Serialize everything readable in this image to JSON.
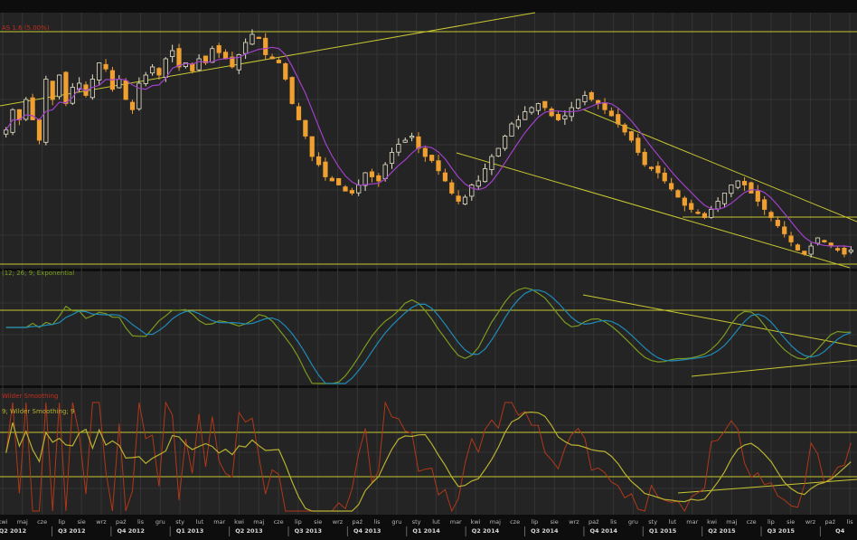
{
  "colors": {
    "background": "#242424",
    "frame": "#0d0d0d",
    "grid": "#353535",
    "bull": "#e8e2c8",
    "bear": "#f0a030",
    "ma": "#a040c8",
    "trend": "#c8c832",
    "macd": "#7a9a20",
    "signal": "#1f8ab8",
    "rsi": "#b03818",
    "rsi_ma": "#b8b030"
  },
  "price_panel": {
    "label": "AS 1.6 (5.00%)"
  },
  "macd_panel": {
    "label": "(12; 26; 9; Exponential"
  },
  "rsi_panel": {
    "label_1": "Wilder Smoothing",
    "label_2": "9; Wilder Smoothing; 9"
  },
  "axis": {
    "months": [
      "kwi",
      "maj",
      "cze",
      "lip",
      "sie",
      "wrz",
      "paź",
      "lis",
      "gru",
      "sty",
      "lut",
      "mar",
      "kwi",
      "maj",
      "cze",
      "lip",
      "sie",
      "wrz",
      "paź",
      "lis",
      "gru",
      "sty",
      "lut",
      "mar",
      "kwi",
      "maj",
      "cze",
      "lip",
      "sie",
      "wrz",
      "paź",
      "lis",
      "gru",
      "sty",
      "lut",
      "mar",
      "kwi",
      "maj",
      "cze",
      "lip",
      "sie",
      "wrz",
      "paź",
      "lis"
    ],
    "quarters": [
      "Q2 2012",
      "Q3 2012",
      "Q4 2012",
      "Q1 2013",
      "Q2 2013",
      "Q3 2013",
      "Q4 2013",
      "Q1 2014",
      "Q2 2014",
      "Q3 2014",
      "Q4 2014",
      "Q1 2015",
      "Q2 2015",
      "Q3 2015",
      "Q4"
    ]
  },
  "chart_data": {
    "type": "candlestick",
    "x_period": "weekly",
    "x_start": "2012-04",
    "x_end": "2015-11",
    "panels": [
      {
        "name": "price",
        "series": [
          {
            "type": "candlestick",
            "close_approx": [
              0.45,
              0.55,
              0.5,
              0.6,
              0.5,
              0.4,
              0.7,
              0.6,
              0.72,
              0.58,
              0.66,
              0.68,
              0.62,
              0.7,
              0.78,
              0.75,
              0.65,
              0.7,
              0.6,
              0.55,
              0.68,
              0.72,
              0.76,
              0.72,
              0.8,
              0.84,
              0.76,
              0.78,
              0.74,
              0.8,
              0.78,
              0.85,
              0.83,
              0.8,
              0.76,
              0.82,
              0.88,
              0.92,
              0.9,
              0.82,
              0.8,
              0.78,
              0.7,
              0.58,
              0.5,
              0.42,
              0.32,
              0.28,
              0.22,
              0.2,
              0.18,
              0.15,
              0.14,
              0.18,
              0.24,
              0.22,
              0.2,
              0.28,
              0.34,
              0.38,
              0.4,
              0.42,
              0.36,
              0.32,
              0.3,
              0.25,
              0.2,
              0.14,
              0.1,
              0.12,
              0.18,
              0.2,
              0.26,
              0.32,
              0.36,
              0.42,
              0.48,
              0.5,
              0.54,
              0.56,
              0.58,
              0.56,
              0.52,
              0.5,
              0.52,
              0.56,
              0.6,
              0.62,
              0.6,
              0.58,
              0.55,
              0.52,
              0.48,
              0.44,
              0.4,
              0.34,
              0.28,
              0.26,
              0.24,
              0.2,
              0.16,
              0.12,
              0.08,
              0.06,
              0.04,
              0.02,
              0.06,
              0.1,
              0.14,
              0.18,
              0.2,
              0.18,
              0.14,
              0.1,
              0.06,
              0.02,
              -0.02,
              -0.06,
              -0.1,
              -0.14,
              -0.16,
              -0.12,
              -0.08,
              -0.1,
              -0.12,
              -0.14,
              -0.16,
              -0.14
            ]
          }
        ]
      },
      {
        "name": "macd",
        "series": [
          {
            "name": "(12; 26; 9; Exponential",
            "type": "line"
          },
          {
            "type": "line"
          }
        ]
      },
      {
        "name": "rsi",
        "series": [
          {
            "name": "Wilder Smoothing",
            "type": "line"
          },
          {
            "name": "9; Wilder Smoothing; 9",
            "type": "line"
          }
        ]
      }
    ]
  }
}
